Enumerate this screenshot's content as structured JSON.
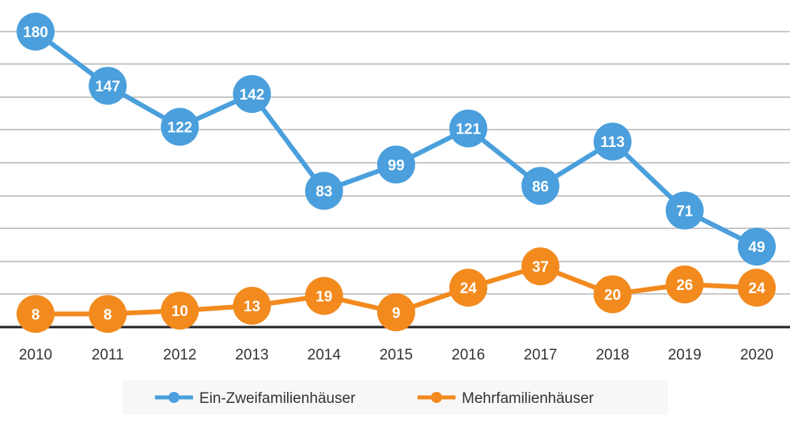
{
  "chart_data": {
    "type": "line",
    "categories": [
      "2010",
      "2011",
      "2012",
      "2013",
      "2014",
      "2015",
      "2016",
      "2017",
      "2018",
      "2019",
      "2020"
    ],
    "series": [
      {
        "name": "Ein-Zweifamilienhäuser",
        "color": "#4a9fdc",
        "values": [
          180,
          147,
          122,
          142,
          83,
          99,
          121,
          86,
          113,
          71,
          49
        ]
      },
      {
        "name": "Mehrfamilienhäuser",
        "color": "#f28a1e",
        "values": [
          8,
          8,
          10,
          13,
          19,
          9,
          24,
          37,
          20,
          26,
          24
        ]
      }
    ],
    "ylim": [
      0,
      180
    ],
    "grid": true,
    "legend_position": "bottom",
    "data_labels": true
  }
}
